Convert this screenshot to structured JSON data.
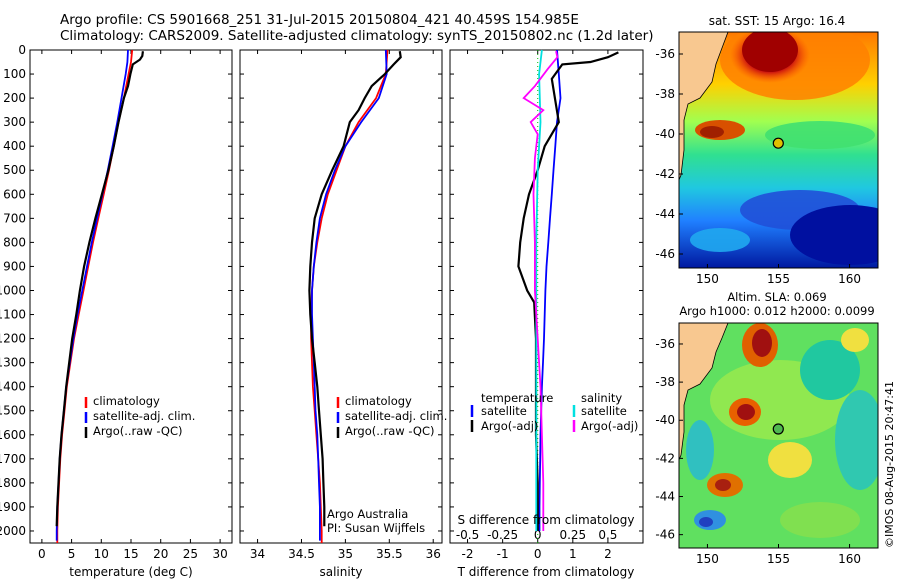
{
  "title": {
    "line1": "Argo profile: CS 5901668_251 31-Jul-2015 20150804_421 40.459S 154.985E",
    "line2": "Climatology: CARS2009. Satellite-adjusted climatology: synTS_20150802.nc (1.2d later)"
  },
  "colors": {
    "climatology": "#ff0000",
    "satellite": "#0000ff",
    "argo": "#000000",
    "sat_salinity": "#00e0e0",
    "argo_salinity": "#ff00ff"
  },
  "chart_data": [
    {
      "type": "line",
      "name": "temperature",
      "xlabel": "temperature (deg C)",
      "xlim": [
        -2,
        32
      ],
      "ylim": [
        2050,
        0
      ],
      "xticks": [
        0,
        5,
        10,
        15,
        20,
        25,
        30
      ],
      "yticks": [
        0,
        100,
        200,
        300,
        400,
        500,
        600,
        700,
        800,
        900,
        1000,
        1100,
        1200,
        1300,
        1400,
        1500,
        1600,
        1700,
        1800,
        1900,
        2000
      ],
      "legend": [
        "climatology",
        "satellite-adj. clim.",
        "Argo(..raw -QC)"
      ],
      "series": [
        {
          "name": "climatology",
          "color": "#ff0000",
          "points": [
            [
              15.2,
              0
            ],
            [
              15.0,
              50
            ],
            [
              14.6,
              100
            ],
            [
              13.8,
              200
            ],
            [
              12.9,
              300
            ],
            [
              12.1,
              400
            ],
            [
              11.3,
              500
            ],
            [
              10.4,
              600
            ],
            [
              9.5,
              700
            ],
            [
              8.6,
              800
            ],
            [
              7.8,
              900
            ],
            [
              7.0,
              1000
            ],
            [
              6.2,
              1100
            ],
            [
              5.4,
              1200
            ],
            [
              4.8,
              1300
            ],
            [
              4.2,
              1400
            ],
            [
              3.8,
              1500
            ],
            [
              3.4,
              1600
            ],
            [
              3.1,
              1700
            ],
            [
              2.9,
              1800
            ],
            [
              2.7,
              1900
            ],
            [
              2.6,
              2000
            ],
            [
              2.6,
              2050
            ]
          ]
        },
        {
          "name": "satellite-adj. clim.",
          "color": "#0000ff",
          "points": [
            [
              14.5,
              0
            ],
            [
              14.4,
              50
            ],
            [
              14.1,
              100
            ],
            [
              13.4,
              200
            ],
            [
              12.7,
              300
            ],
            [
              11.9,
              400
            ],
            [
              11.1,
              500
            ],
            [
              10.2,
              600
            ],
            [
              9.3,
              700
            ],
            [
              8.4,
              800
            ],
            [
              7.6,
              900
            ],
            [
              6.8,
              1000
            ],
            [
              6.0,
              1100
            ],
            [
              5.3,
              1200
            ],
            [
              4.7,
              1300
            ],
            [
              4.1,
              1400
            ],
            [
              3.7,
              1500
            ],
            [
              3.3,
              1600
            ],
            [
              3.0,
              1700
            ],
            [
              2.8,
              1800
            ],
            [
              2.6,
              1900
            ],
            [
              2.5,
              2000
            ],
            [
              2.5,
              2040
            ]
          ]
        },
        {
          "name": "Argo(..raw -QC)",
          "color": "#000000",
          "points": [
            [
              17.0,
              5
            ],
            [
              16.9,
              25
            ],
            [
              16.5,
              40
            ],
            [
              15.3,
              60
            ],
            [
              14.9,
              100
            ],
            [
              14.5,
              150
            ],
            [
              13.8,
              200
            ],
            [
              12.9,
              300
            ],
            [
              12.1,
              400
            ],
            [
              11.2,
              500
            ],
            [
              10.1,
              600
            ],
            [
              9.0,
              700
            ],
            [
              8.0,
              800
            ],
            [
              7.1,
              900
            ],
            [
              6.4,
              1000
            ],
            [
              5.8,
              1100
            ],
            [
              5.1,
              1200
            ],
            [
              4.6,
              1300
            ],
            [
              4.1,
              1400
            ],
            [
              3.7,
              1500
            ],
            [
              3.3,
              1600
            ],
            [
              3.0,
              1700
            ],
            [
              2.8,
              1800
            ],
            [
              2.6,
              1900
            ],
            [
              2.5,
              1980
            ]
          ]
        }
      ]
    },
    {
      "type": "line",
      "name": "salinity",
      "xlabel": "salinity",
      "xlim": [
        33.8,
        36.1
      ],
      "ylim": [
        2050,
        0
      ],
      "xticks": [
        34,
        34.5,
        35,
        35.5,
        36
      ],
      "legend": [
        "climatology",
        "satellite-adj. clim.",
        "Argo(..raw -QC)"
      ],
      "annotations": [
        "Argo Australia",
        "PI: Susan Wijffels"
      ],
      "series": [
        {
          "name": "climatology",
          "color": "#ff0000",
          "points": [
            [
              35.48,
              0
            ],
            [
              35.46,
              100
            ],
            [
              35.35,
              200
            ],
            [
              35.15,
              300
            ],
            [
              35.0,
              400
            ],
            [
              34.9,
              500
            ],
            [
              34.8,
              600
            ],
            [
              34.73,
              700
            ],
            [
              34.68,
              800
            ],
            [
              34.64,
              900
            ],
            [
              34.62,
              1000
            ],
            [
              34.61,
              1100
            ],
            [
              34.61,
              1200
            ],
            [
              34.62,
              1300
            ],
            [
              34.63,
              1400
            ],
            [
              34.65,
              1500
            ],
            [
              34.67,
              1600
            ],
            [
              34.69,
              1700
            ],
            [
              34.71,
              1800
            ],
            [
              34.72,
              1900
            ],
            [
              34.73,
              2000
            ],
            [
              34.73,
              2050
            ]
          ]
        },
        {
          "name": "satellite-adj. clim.",
          "color": "#0000ff",
          "points": [
            [
              35.46,
              0
            ],
            [
              35.47,
              100
            ],
            [
              35.38,
              200
            ],
            [
              35.18,
              300
            ],
            [
              35.0,
              400
            ],
            [
              34.88,
              500
            ],
            [
              34.78,
              600
            ],
            [
              34.71,
              700
            ],
            [
              34.67,
              800
            ],
            [
              34.64,
              900
            ],
            [
              34.62,
              1000
            ],
            [
              34.62,
              1100
            ],
            [
              34.63,
              1200
            ],
            [
              34.64,
              1300
            ],
            [
              34.65,
              1400
            ],
            [
              34.66,
              1500
            ],
            [
              34.68,
              1600
            ],
            [
              34.69,
              1700
            ],
            [
              34.7,
              1800
            ],
            [
              34.71,
              1900
            ],
            [
              34.71,
              2000
            ],
            [
              34.71,
              2040
            ]
          ]
        },
        {
          "name": "Argo(..raw -QC)",
          "color": "#000000",
          "points": [
            [
              35.62,
              5
            ],
            [
              35.63,
              30
            ],
            [
              35.55,
              60
            ],
            [
              35.45,
              100
            ],
            [
              35.3,
              150
            ],
            [
              35.22,
              200
            ],
            [
              35.15,
              250
            ],
            [
              35.05,
              300
            ],
            [
              34.98,
              400
            ],
            [
              34.85,
              500
            ],
            [
              34.73,
              600
            ],
            [
              34.65,
              700
            ],
            [
              34.62,
              800
            ],
            [
              34.6,
              900
            ],
            [
              34.59,
              1000
            ],
            [
              34.6,
              1100
            ],
            [
              34.62,
              1200
            ],
            [
              34.65,
              1300
            ],
            [
              34.68,
              1400
            ],
            [
              34.7,
              1500
            ],
            [
              34.72,
              1600
            ],
            [
              34.74,
              1700
            ],
            [
              34.75,
              1800
            ],
            [
              34.76,
              1900
            ],
            [
              34.76,
              1980
            ]
          ]
        }
      ]
    },
    {
      "type": "line",
      "name": "difference",
      "xlabel": "T difference from climatology",
      "xlabel2": "S difference from climatology",
      "xlim": [
        -2.5,
        3.0
      ],
      "ylim": [
        2050,
        0
      ],
      "xticks": [
        -2,
        -1,
        0,
        1,
        2
      ],
      "xticks2": [
        -0.5,
        -0.25,
        0,
        0.25,
        0.5
      ],
      "legend_left": [
        "temperature",
        "satellite",
        "Argo(-adj)"
      ],
      "legend_right": [
        "salinity",
        "satellite",
        "Argo(-adj)"
      ],
      "series": [
        {
          "name": "temperature satellite",
          "color": "#0000ff",
          "points": [
            [
              0.55,
              0
            ],
            [
              0.6,
              100
            ],
            [
              0.65,
              200
            ],
            [
              0.55,
              300
            ],
            [
              0.5,
              400
            ],
            [
              0.45,
              500
            ],
            [
              0.4,
              600
            ],
            [
              0.35,
              700
            ],
            [
              0.3,
              800
            ],
            [
              0.25,
              900
            ],
            [
              0.22,
              1000
            ],
            [
              0.2,
              1100
            ],
            [
              0.18,
              1200
            ],
            [
              0.15,
              1300
            ],
            [
              0.12,
              1400
            ],
            [
              0.1,
              1500
            ],
            [
              0.08,
              1600
            ],
            [
              0.07,
              1700
            ],
            [
              0.06,
              1800
            ],
            [
              0.05,
              1900
            ],
            [
              0.05,
              2000
            ]
          ]
        },
        {
          "name": "temperature Argo(-adj)",
          "color": "#000000",
          "points": [
            [
              2.3,
              10
            ],
            [
              2.0,
              30
            ],
            [
              1.5,
              50
            ],
            [
              0.7,
              60
            ],
            [
              0.4,
              120
            ],
            [
              0.6,
              300
            ],
            [
              0.2,
              400
            ],
            [
              0.0,
              500
            ],
            [
              -0.25,
              600
            ],
            [
              -0.4,
              700
            ],
            [
              -0.5,
              800
            ],
            [
              -0.55,
              900
            ],
            [
              -0.3,
              1000
            ],
            [
              -0.1,
              1050
            ],
            [
              -0.05,
              1200
            ],
            [
              -0.05,
              1400
            ],
            [
              -0.05,
              1600
            ],
            [
              0.0,
              1800
            ],
            [
              0.0,
              2000
            ]
          ]
        },
        {
          "name": "salinity satellite",
          "color": "#00e0e0",
          "points": [
            [
              0.03,
              0
            ],
            [
              0.01,
              100
            ],
            [
              0.02,
              300
            ],
            [
              0.0,
              500
            ],
            [
              -0.01,
              800
            ],
            [
              -0.01,
              1200
            ],
            [
              -0.01,
              1600
            ],
            [
              -0.01,
              2000
            ]
          ]
        },
        {
          "name": "salinity Argo(-adj)",
          "color": "#ff00ff",
          "points": [
            [
              0.13,
              5
            ],
            [
              0.14,
              30
            ],
            [
              0.07,
              80
            ],
            [
              -0.02,
              150
            ],
            [
              -0.1,
              200
            ],
            [
              0.04,
              250
            ],
            [
              -0.05,
              300
            ],
            [
              0.0,
              350
            ],
            [
              -0.02,
              450
            ],
            [
              -0.03,
              600
            ],
            [
              -0.02,
              800
            ],
            [
              -0.02,
              1000
            ],
            [
              0.0,
              1200
            ],
            [
              0.02,
              1400
            ],
            [
              0.03,
              1600
            ],
            [
              0.04,
              1800
            ],
            [
              0.04,
              2000
            ]
          ]
        }
      ]
    },
    {
      "type": "heatmap",
      "name": "sst_map",
      "title": "sat. SST: 15 Argo: 16.4",
      "xticks": [
        150,
        155,
        160
      ],
      "yticks": [
        -36,
        -38,
        -40,
        -42,
        -44,
        -46
      ],
      "xlim": [
        148,
        162
      ],
      "ylim": [
        -46.7,
        -34.9
      ],
      "argo_position": [
        154.985,
        -40.459
      ]
    },
    {
      "type": "heatmap",
      "name": "sla_map",
      "title1": "Altim. SLA: 0.069",
      "title2": "Argo h1000: 0.012 h2000: 0.0099",
      "xticks": [
        150,
        155,
        160
      ],
      "yticks": [
        -36,
        -38,
        -40,
        -42,
        -44,
        -46
      ],
      "xlim": [
        148,
        162
      ],
      "ylim": [
        -46.7,
        -34.9
      ],
      "argo_position": [
        154.985,
        -40.459
      ]
    }
  ],
  "watermark": "©IMOS 08-Aug-2015 20:47:41"
}
